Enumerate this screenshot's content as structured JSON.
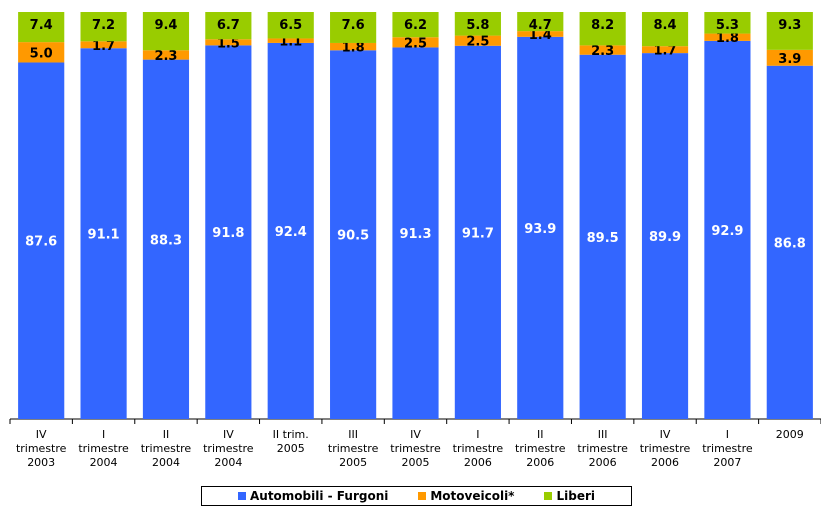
{
  "chart_data": {
    "type": "bar",
    "stacked": true,
    "categories": [
      "IV trimestre 2003",
      "I trimestre 2004",
      "II trimestre 2004",
      "IV trimestre 2004",
      "II trim. 2005",
      "III trimestre 2005",
      "IV trimestre 2005",
      "I trimestre 2006",
      "II trimestre 2006",
      "III trimestre 2006",
      "IV trimestre 2006",
      "I trimestre 2007",
      "2009"
    ],
    "category_lines": [
      [
        "IV",
        "trimestre",
        "2003"
      ],
      [
        "I",
        "trimestre",
        "2004"
      ],
      [
        "II",
        "trimestre",
        "2004"
      ],
      [
        "IV",
        "trimestre",
        "2004"
      ],
      [
        "II trim.",
        "2005"
      ],
      [
        "III",
        "trimestre",
        "2005"
      ],
      [
        "IV",
        "trimestre",
        "2005"
      ],
      [
        "I",
        "trimestre",
        "2006"
      ],
      [
        "II",
        "trimestre",
        "2006"
      ],
      [
        "III",
        "trimestre",
        "2006"
      ],
      [
        "IV",
        "trimestre",
        "2006"
      ],
      [
        "I",
        "trimestre",
        "2007"
      ],
      [
        "2009"
      ]
    ],
    "series": [
      {
        "name": "Automobili - Furgoni",
        "color": "#3366FF",
        "values": [
          87.6,
          91.1,
          88.3,
          91.8,
          92.4,
          90.5,
          91.3,
          91.7,
          93.9,
          89.5,
          89.9,
          92.9,
          86.8
        ]
      },
      {
        "name": "Motoveicoli*",
        "color": "#FF9900",
        "values": [
          5.0,
          1.7,
          2.3,
          1.5,
          1.1,
          1.8,
          2.5,
          2.5,
          1.4,
          2.3,
          1.7,
          1.8,
          3.9
        ]
      },
      {
        "name": "Liberi",
        "color": "#99CC00",
        "values": [
          7.4,
          7.2,
          9.4,
          6.7,
          6.5,
          7.6,
          6.2,
          5.8,
          4.7,
          8.2,
          8.4,
          5.3,
          9.3
        ]
      }
    ],
    "value_labels": [
      [
        "87.6",
        "91.1",
        "88.3",
        "91.8",
        "92.4",
        "90.5",
        "91.3",
        "91.7",
        "93.9",
        "89.5",
        "89.9",
        "92.9",
        "86.8"
      ],
      [
        "5.0",
        "1.7",
        "2.3",
        "1.5",
        "1.1",
        "1.8",
        "2.5",
        "2.5",
        "1.4",
        "2.3",
        "1.7",
        "1.8",
        "3.9"
      ],
      [
        "7.4",
        "7.2",
        "9.4",
        "6.7",
        "6.5",
        "7.6",
        "6.2",
        "5.8",
        "4.7",
        "8.2",
        "8.4",
        "5.3",
        "9.3"
      ]
    ],
    "ylim": [
      0,
      100
    ],
    "grid": false,
    "legend_position": "bottom",
    "title": "",
    "xlabel": "",
    "ylabel": ""
  }
}
